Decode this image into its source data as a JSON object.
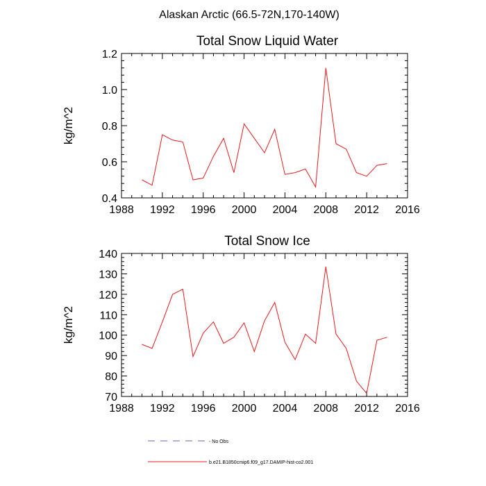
{
  "figure": {
    "suptitle": "Alaskan Arctic (66.5-72N,170-140W)"
  },
  "legend": {
    "entries": [
      {
        "label": "- No Obs",
        "color": "#6666aa",
        "style": "dashed"
      },
      {
        "label": "b.e21.B1850cmip6.f09_g17.DAMIP-hist-co2.001",
        "color": "#e8191c",
        "style": "solid"
      }
    ]
  },
  "chart_data": [
    {
      "type": "line",
      "title": "Total Snow Liquid Water",
      "ylabel": "kg/m^2",
      "xlabel": "",
      "xlim": [
        1988,
        2016
      ],
      "ylim": [
        0.4,
        1.2
      ],
      "xticks": [
        1988,
        1992,
        1996,
        2000,
        2004,
        2008,
        2012,
        2016
      ],
      "yticks": [
        0.4,
        0.6,
        0.8,
        1.0,
        1.2
      ],
      "ytick_labels": [
        "0.4",
        "0.6",
        "0.8",
        "1.0",
        "1.2"
      ],
      "series": [
        {
          "color": "#e8191c",
          "x": [
            1990,
            1991,
            1992,
            1993,
            1994,
            1995,
            1996,
            1997,
            1998,
            1999,
            2000,
            2001,
            2002,
            2003,
            2004,
            2005,
            2006,
            2007,
            2008,
            2009,
            2010,
            2011,
            2012,
            2013,
            2014
          ],
          "values": [
            0.5,
            0.47,
            0.75,
            0.72,
            0.71,
            0.5,
            0.51,
            0.63,
            0.73,
            0.54,
            0.81,
            0.73,
            0.65,
            0.78,
            0.53,
            0.54,
            0.56,
            0.46,
            1.12,
            0.7,
            0.67,
            0.54,
            0.52,
            0.58,
            0.59
          ]
        }
      ]
    },
    {
      "type": "line",
      "title": "Total Snow Ice",
      "ylabel": "kg/m^2",
      "xlabel": "",
      "xlim": [
        1988,
        2016
      ],
      "ylim": [
        70,
        140
      ],
      "xticks": [
        1988,
        1992,
        1996,
        2000,
        2004,
        2008,
        2012,
        2016
      ],
      "yticks": [
        70,
        80,
        90,
        100,
        110,
        120,
        130,
        140
      ],
      "ytick_labels": [
        "70",
        "80",
        "90",
        "100",
        "110",
        "120",
        "130",
        "140"
      ],
      "series": [
        {
          "color": "#e8191c",
          "x": [
            1990,
            1991,
            1992,
            1993,
            1994,
            1995,
            1996,
            1997,
            1998,
            1999,
            2000,
            2001,
            2002,
            2003,
            2004,
            2005,
            2006,
            2007,
            2008,
            2009,
            2010,
            2011,
            2012,
            2013,
            2014
          ],
          "values": [
            95.5,
            93.5,
            106.5,
            120.0,
            122.5,
            89.5,
            101.0,
            106.5,
            96.0,
            99.0,
            106.0,
            92.0,
            107.0,
            116.0,
            96.5,
            88.0,
            100.5,
            96.0,
            133.5,
            100.5,
            93.5,
            77.5,
            71.5,
            97.5,
            99.0
          ]
        }
      ]
    }
  ]
}
